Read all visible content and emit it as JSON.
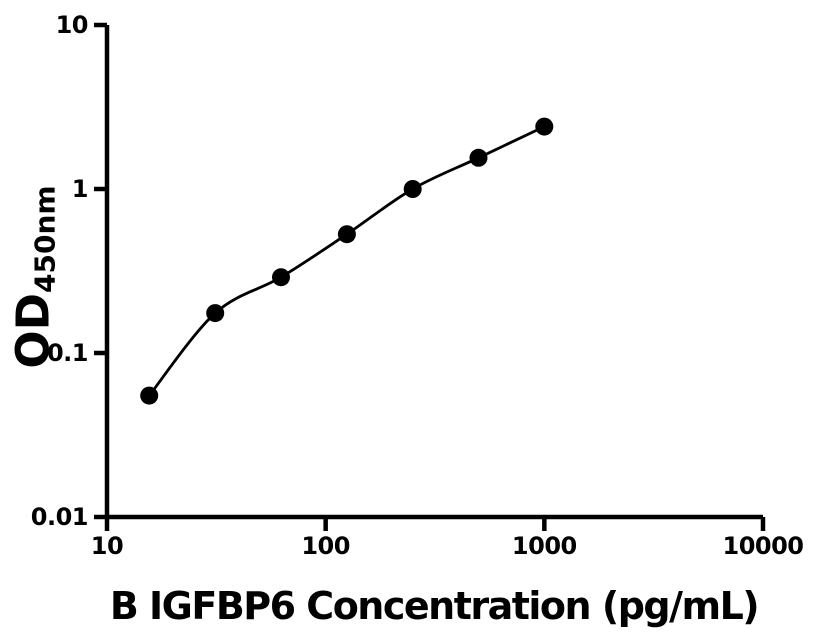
{
  "figure": {
    "background": "#ffffff",
    "foreground": "#000000"
  },
  "chart_data": {
    "type": "scatter",
    "subtype": "standard-curve-with-smooth-fit",
    "x_scale": "log10",
    "y_scale": "log10",
    "xlim": [
      10,
      10000
    ],
    "ylim": [
      0.01,
      10
    ],
    "x": [
      15.6,
      31.25,
      62.5,
      125,
      250,
      500,
      1000
    ],
    "y": [
      0.055,
      0.175,
      0.29,
      0.53,
      1.0,
      1.55,
      2.4
    ],
    "marker": {
      "shape": "circle",
      "color": "#000000"
    },
    "line_color": "#000000",
    "axis_color": "#000000",
    "xlabel": "B IGFBP6 Concentration (pg/mL)",
    "ylabel": "OD",
    "ylabel_subscript": "450nm",
    "x_ticks": [
      "10",
      "100",
      "1000",
      "10000"
    ],
    "y_ticks": [
      "10",
      "1",
      "0.1",
      "0.01"
    ],
    "grid": false,
    "legend": false
  }
}
